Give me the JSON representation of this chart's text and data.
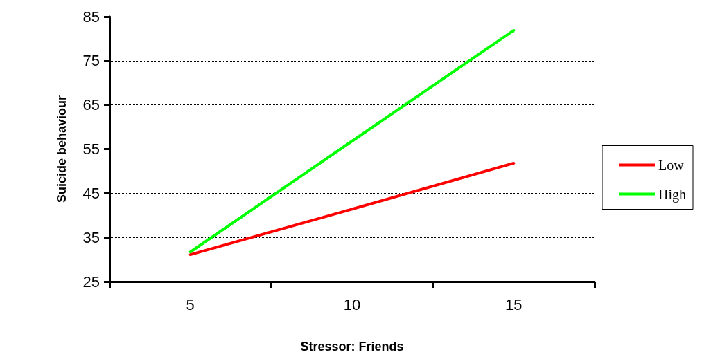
{
  "chart_data": {
    "type": "line",
    "xlabel": "Stressor: Friends",
    "ylabel": "Suicide behaviour",
    "categories": [
      "5",
      "10",
      "15"
    ],
    "series": [
      {
        "name": "Low",
        "color": "#ff0000",
        "values": [
          31.1,
          41.4,
          51.8
        ]
      },
      {
        "name": "High",
        "color": "#00ff00",
        "values": [
          31.7,
          56.8,
          81.9
        ]
      }
    ],
    "ylim": [
      25,
      85
    ],
    "yticks": [
      25,
      35,
      45,
      55,
      65,
      75,
      85
    ],
    "grid": "y",
    "legend": "right",
    "marker": "none",
    "line_style": "solid"
  }
}
